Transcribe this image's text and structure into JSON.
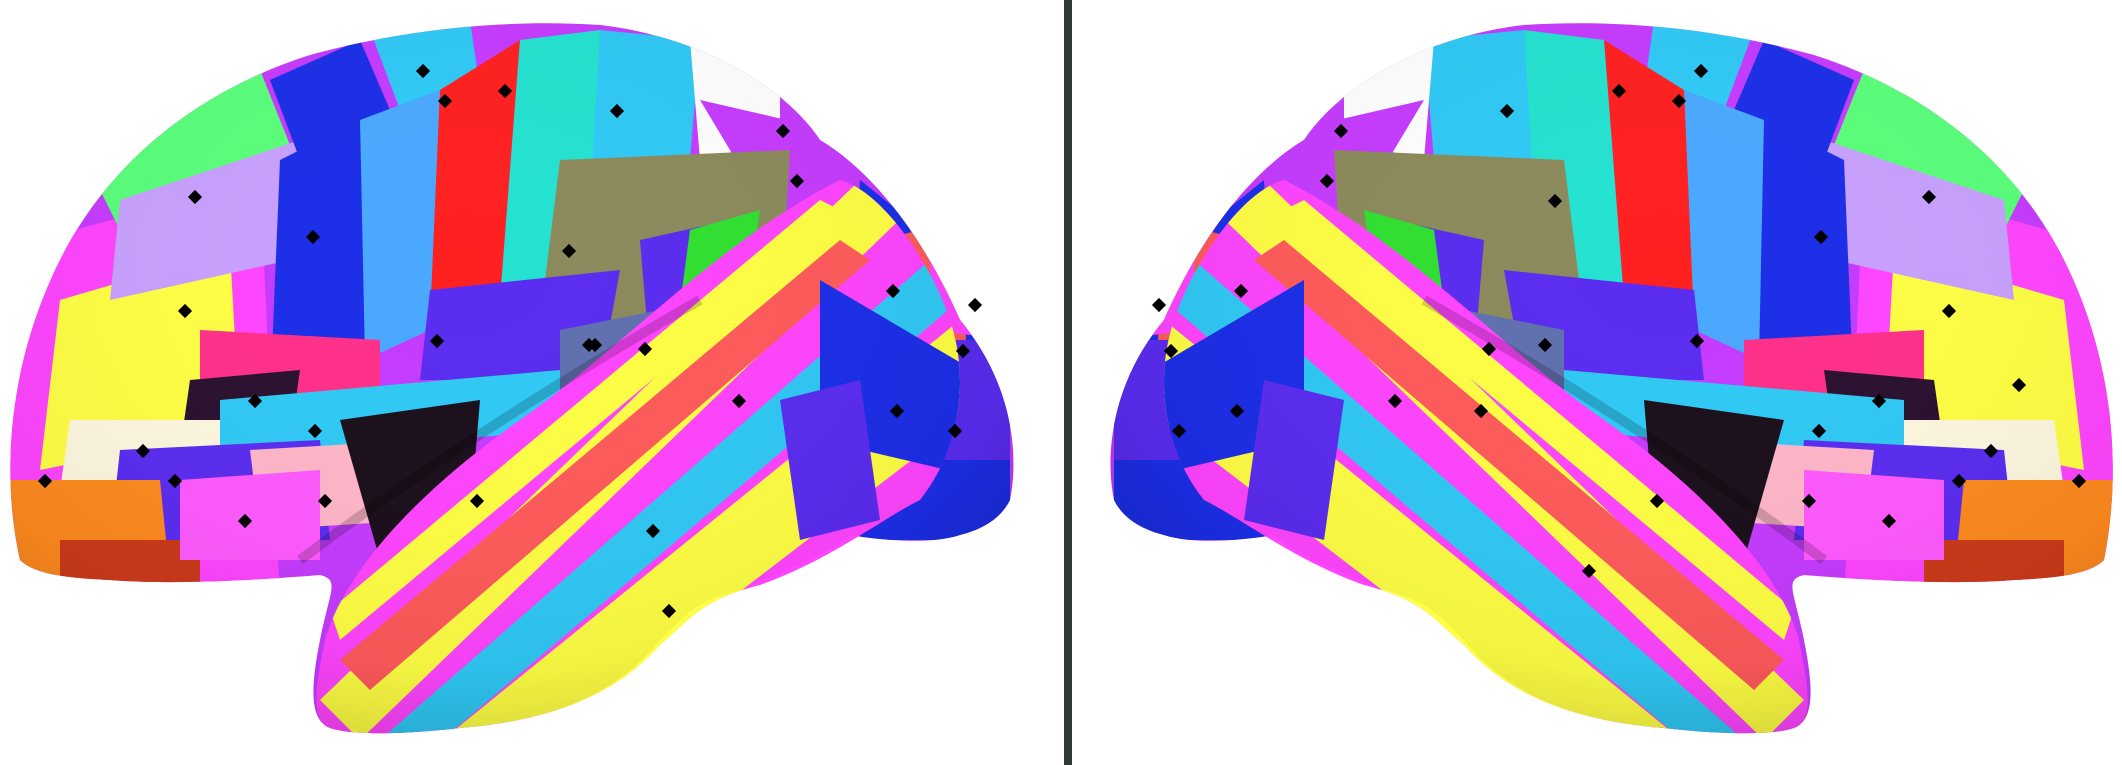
{
  "views": {
    "left": {
      "hemisphere": "left",
      "view": "lateral"
    },
    "right": {
      "hemisphere": "right",
      "view": "lateral"
    }
  },
  "colors": {
    "background": "#ffffff",
    "divider": "#2f3a38",
    "parcel_palette": [
      "#1b2ee8",
      "#ff2020",
      "#2fc9f5",
      "#24e2d0",
      "#ffff44",
      "#ff5a5a",
      "#ff44ff",
      "#8b8a5c",
      "#30e030",
      "#c53bff",
      "#5a2cf0",
      "#ff2f8a",
      "#ff8a1e",
      "#c8a0ff",
      "#ffb6c8",
      "#fff8e0",
      "#2a1030",
      "#59ff7a"
    ]
  }
}
